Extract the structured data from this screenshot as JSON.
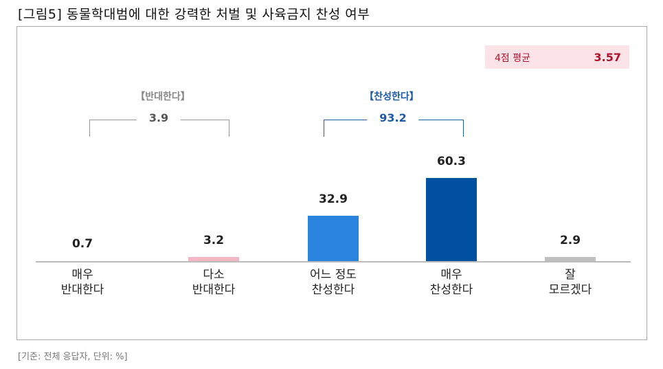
{
  "title": "[그림5] 동물학대범에 대한 강력한 처벌 및 사육금지 찬성 여부",
  "footer": "[기준: 전체 응답자, 단위: %]",
  "average": {
    "label": "4점 평균",
    "value": "3.57"
  },
  "groups": [
    {
      "label": "【반대한다】",
      "value": "3.9",
      "color": "#888888"
    },
    {
      "label": "【찬성한다】",
      "value": "93.2",
      "color": "#1f5aa6"
    }
  ],
  "chart_data": {
    "type": "bar",
    "title": "[그림5] 동물학대범에 대한 강력한 처벌 및 사육금지 찬성 여부",
    "categories": [
      "매우\n반대한다",
      "다소\n반대한다",
      "어느 정도\n찬성한다",
      "매우\n찬성한다",
      "잘\n모르겠다"
    ],
    "values": [
      0.7,
      3.2,
      32.9,
      60.3,
      2.9
    ],
    "labels": [
      "0.7",
      "3.2",
      "32.9",
      "60.3",
      "2.9"
    ],
    "colors": [
      "#f4b6c2",
      "#f4b6c2",
      "#2a83dc",
      "#0050a0",
      "#bfbfbf"
    ],
    "ylim": [
      0,
      65
    ],
    "xlabel": "",
    "ylabel": "",
    "grid": false
  }
}
